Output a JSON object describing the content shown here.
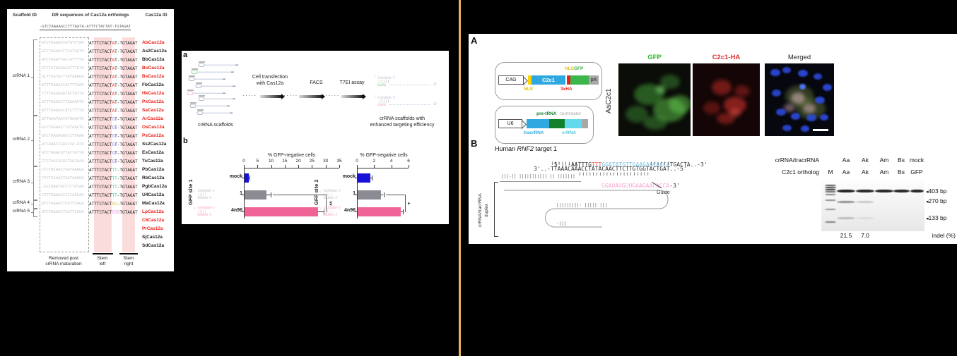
{
  "colors": {
    "divider": "#e8b45c",
    "stem_highlight": "#fbdcdc",
    "red_id": "#ee1c16",
    "bar_mock": "#1812d8",
    "bar_one": "#8b8b93",
    "bar_4n96": "#ef6397",
    "construct_blue": "#2fa8e1",
    "construct_green": "#3cb54a",
    "construct_darkgreen": "#14802e",
    "construct_cyan": "#62d9ec",
    "construct_yellow": "#ffd400",
    "construct_red": "#e8201a",
    "target_blue": "#7cc4e8",
    "pam_red": "#ef5350",
    "guide_pink": "#f6a8d0"
  },
  "left_panel": {
    "headers": {
      "scaffold_id": "Scaffold ID",
      "dr": "DR sequences of Cas12a orthologs",
      "cas12a_id": "Cas12a ID"
    },
    "consensus": "-GTCTAAAAGCCTTTAATA-ATTTCTACTAT-TGTAGAT",
    "dr_prefix": "ATTTCTACT",
    "groups": [
      {
        "label": "crRNA 1",
        "variant": "A",
        "variant_color": "#f0392e",
        "suffix": "T-TGTAGAT",
        "rows": [
          {
            "removed": "GTCTAAAGATATATCTAA",
            "id": "AbCas12a",
            "red": true
          },
          {
            "removed": "GTCTAGAACCTCATGATA",
            "id": "As2Cas12a",
            "red": false
          },
          {
            "removed": "GTCTAGATTACCATTTTA",
            "id": "BbCas12a",
            "red": false
          },
          {
            "removed": "GTCTATAAGACATTTATA",
            "id": "BoCas12a",
            "red": true
          },
          {
            "removed": "GCTTAGTACTTATAAAGA",
            "id": "BsCas12a",
            "red": true
          },
          {
            "removed": "GTTTAAAACCACTTTAAA",
            "id": "FbCas12a",
            "red": false
          },
          {
            "removed": "CTTTAAGAGATACTATTA",
            "id": "HkCas12a",
            "red": true
          },
          {
            "removed": "GCTTAAGACTTAGAAATA",
            "id": "PxCas12a",
            "red": true
          },
          {
            "removed": "ATTTGAAAGCATCTTTTA",
            "id": "SaCas12a",
            "red": true
          }
        ]
      },
      {
        "label": "crRNA 2",
        "variant": "G",
        "variant_color": "#8f7fe0",
        "suffix": "T-TGTAGAT",
        "rows": [
          {
            "removed": "GTTAAGTAATATAGAATA",
            "id": "ArCas12a",
            "red": true
          },
          {
            "removed": "GCCTAGAACTTATAAATG",
            "id": "OsCas12a",
            "red": true
          },
          {
            "removed": "GTCTAAGAGACCCTTAAA",
            "id": "PsCas12a",
            "red": true
          },
          {
            "removed": "ATCAAACCGACCCA-ATA",
            "id": "Ss2Cas12a",
            "red": false
          },
          {
            "removed": "GTCTAGACGTTACTATTA",
            "id": "EsCas12a",
            "red": false
          },
          {
            "removed": "CTCTAGCAGGCTGGCAAA",
            "id": "TsCas12a",
            "red": false
          }
        ]
      },
      {
        "label": "crRNA 3",
        "variant": "TT",
        "variant_color": "#3ec98a",
        "suffix": "-TGTAGAT",
        "rows": [
          {
            "removed": "CTCTACAACTGATAAAGA",
            "id": "PbCas12a",
            "red": false
          },
          {
            "removed": "CTCTACAACTGATAAAGA",
            "id": "RbCas12a",
            "red": false
          },
          {
            "removed": "-GCCAAATACCTCTATAA",
            "id": "PgbCas12a",
            "red": false
          },
          {
            "removed": "CTCTAAAACCCCCAACAA",
            "id": "U4Cas12a",
            "red": false
          }
        ]
      },
      {
        "label": "crRNA 4",
        "variant": "AG",
        "variant_color": "#e2c240",
        "suffix": "-TGTAGAT",
        "rows": [
          {
            "removed": "GTCTAAAACTCATTCAGA",
            "id": "MaCas12a",
            "red": false
          }
        ]
      },
      {
        "label": "crRNA 5",
        "variant": "GTG",
        "variant_color": "#ea7ae2",
        "suffix": "TGTAGAT",
        "rows": [
          {
            "removed": "GTCTAAAACTCATTCAGA",
            "id": "LpCas12a",
            "red": true
          },
          {
            "removed": "",
            "id": "C6Cas12a",
            "red": true
          },
          {
            "removed": "",
            "id": "PrCas12a",
            "red": true
          },
          {
            "removed": "",
            "id": "SjCas12a",
            "red": false
          },
          {
            "removed": "",
            "id": "SdCas12a",
            "red": false
          }
        ]
      }
    ],
    "footer": {
      "removed_1": "Removed post",
      "removed_2": "crRNA maturation",
      "stem_left_1": "Stem",
      "stem_left_2": "left",
      "stem_right_1": "Stem",
      "stem_right_2": "right"
    }
  },
  "panel_a": {
    "label": "a",
    "scaffolds_label": "crRNA scaffolds",
    "step1_line1": "Cell transfection",
    "step1_line2": "with Cas12a",
    "step2": "FACS",
    "step3": "T7EI assay",
    "dots": "·····",
    "hairpin_top": "CAUCUUUA-5'",
    "hairpin_pairs": "|||||",
    "hairpin_bottom": "GAGAU",
    "hairpin_end": "-3'",
    "result_line1": "crRNA scaffolds with",
    "result_line2": "enhanced targeting efficiency"
  },
  "panel_b": {
    "label": "b",
    "site_labels": [
      "GFP site 1",
      "GFP site 2"
    ],
    "legend": {
      "top": "CAUCUUUA-5'",
      "pairs": "|||||",
      "bottom": "GAUGAU-3'"
    }
  },
  "chart_data": [
    {
      "type": "bar",
      "orientation": "horizontal",
      "title": "% GFP-negative cells",
      "site": "GFP site 1",
      "categories": [
        "mock",
        "1",
        "4n96"
      ],
      "values": [
        1.5,
        8,
        27
      ],
      "errors": [
        0.4,
        1.5,
        2
      ],
      "xticks": [
        0,
        5,
        10,
        15,
        20,
        25,
        30,
        35
      ],
      "xlim": [
        0,
        35
      ],
      "significance": "**",
      "bar_colors": [
        "#1812d8",
        "#8b8b93",
        "#ef6397"
      ]
    },
    {
      "type": "bar",
      "orientation": "horizontal",
      "title": "% GFP-negative cells",
      "site": "GFP site 2",
      "categories": [
        "mock",
        "1",
        "4n96"
      ],
      "values": [
        1.5,
        2.7,
        5.0
      ],
      "errors": [
        0.15,
        0.3,
        0.25
      ],
      "xticks": [
        0,
        2,
        4,
        6
      ],
      "xlim": [
        0,
        6
      ],
      "significance": "*",
      "bar_colors": [
        "#1812d8",
        "#8b8b93",
        "#ef6397"
      ]
    }
  ],
  "panel_A": {
    "label": "A",
    "construct1": {
      "promoter": "CAG",
      "nls_top": "NLS",
      "gfp_top": "GFP",
      "gene": "C2c1",
      "ha": "3xHA",
      "nls_bottom": "NLS",
      "pa": "pA"
    },
    "construct2": {
      "promoter": "U6",
      "pre_trna": "pre-tRNA",
      "terminator": "terminator",
      "tracrrna": "tracrRNA",
      "crrna": "crRNA"
    },
    "row_label": "AaC2c1",
    "image_labels": [
      "GFP",
      "C2c1-HA",
      "Merged"
    ]
  },
  "panel_B": {
    "label": "B",
    "title_prefix": "Human ",
    "title_gene": "RNF2",
    "title_suffix": " target 1",
    "top_strand": {
      "p1": "5'..-AATTTG",
      "pam": "TTT",
      "target": "GGATATGTTGAAGAACACCA",
      "p2": "TGACTA..-3'"
    },
    "pair_left": "|||||||||",
    "pair_right": "||||||",
    "bottom_strand": "3'..-TTAAACAAACCTATACAACTTCTTGTGGTACTGAT..-5'",
    "pair_guide": "|||||||||||||||||||||",
    "guide_seq": "GGAUAUGUUGAAGAACACCA",
    "guide_end": "-3'",
    "guide_label": "Guide",
    "duplex_label_1": "crRNA/tracrRNA",
    "duplex_label_2": "duplex",
    "duplex_marks_1": "|||-|| ||||||||||| || |||||||",
    "duplex_marks_2": "|||||||||· ||||| |||",
    "duplex_marks_3": "·|||",
    "gel": {
      "header_row1_label": "crRNA/tracrRNA",
      "header_row1": [
        "Aa",
        "Ak",
        "Am",
        "Bs",
        "mock"
      ],
      "header_row2_label": "C2c1 ortholog",
      "header_row2": [
        "M",
        "Aa",
        "Ak",
        "Am",
        "Bs",
        "GFP"
      ],
      "band_labels": [
        "403 bp",
        "270 bp",
        "133 bp"
      ],
      "indel_values": [
        "21.5",
        "7.0"
      ],
      "indel_label": "indel (%)"
    }
  }
}
